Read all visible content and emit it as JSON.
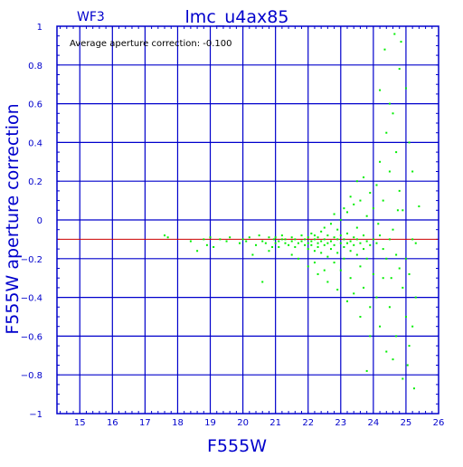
{
  "chart_data": {
    "type": "scatter",
    "title": "lmc_u4ax85",
    "corner_label": "WF3",
    "annotation": "Average aperture correction: -0.100",
    "xlabel": "F555W",
    "ylabel": "F555W aperture correction",
    "xlim": [
      14.3,
      26
    ],
    "ylim": [
      -1,
      1
    ],
    "x_ticks": [
      15,
      16,
      17,
      18,
      19,
      20,
      21,
      22,
      23,
      24,
      25,
      26
    ],
    "y_ticks": [
      -1,
      -0.8,
      -0.6,
      -0.4,
      -0.2,
      0,
      0.2,
      0.4,
      0.6,
      0.8,
      1
    ],
    "y_tick_labels": [
      "−1",
      "−0.8",
      "−0.6",
      "−0.4",
      "−0.2",
      "0",
      "0.2",
      "0.4",
      "0.6",
      "0.8",
      "1"
    ],
    "grid": true,
    "reference_line_y": -0.1,
    "colors": {
      "frame": "#0000cc",
      "grid": "#0000cc",
      "points": "#00ee00",
      "reference_line": "#cc0000",
      "text": "#0000cc",
      "annotation_text": "#000000"
    },
    "series": [
      {
        "points": [
          [
            17.6,
            -0.08
          ],
          [
            17.7,
            -0.09
          ],
          [
            18.4,
            -0.11
          ],
          [
            18.6,
            -0.16
          ],
          [
            18.8,
            -0.1
          ],
          [
            18.9,
            -0.13
          ],
          [
            19.0,
            -0.09
          ],
          [
            19.1,
            -0.14
          ],
          [
            19.3,
            -0.1
          ],
          [
            19.5,
            -0.11
          ],
          [
            19.6,
            -0.09
          ],
          [
            19.9,
            -0.12
          ],
          [
            20.0,
            -0.1
          ],
          [
            20.1,
            -0.11
          ],
          [
            20.2,
            -0.09
          ],
          [
            20.4,
            -0.13
          ],
          [
            20.5,
            -0.08
          ],
          [
            20.6,
            -0.11
          ],
          [
            20.7,
            -0.12
          ],
          [
            20.8,
            -0.09
          ],
          [
            20.9,
            -0.14
          ],
          [
            20.95,
            -0.1
          ],
          [
            20.3,
            -0.18
          ],
          [
            20.6,
            -0.32
          ],
          [
            20.8,
            -0.16
          ],
          [
            21.0,
            -0.12
          ],
          [
            21.0,
            -0.09
          ],
          [
            21.1,
            -0.11
          ],
          [
            21.1,
            -0.14
          ],
          [
            21.2,
            -0.1
          ],
          [
            21.2,
            -0.08
          ],
          [
            21.3,
            -0.12
          ],
          [
            21.3,
            -0.1
          ],
          [
            21.4,
            -0.13
          ],
          [
            21.5,
            -0.09
          ],
          [
            21.5,
            -0.11
          ],
          [
            21.6,
            -0.1
          ],
          [
            21.6,
            -0.14
          ],
          [
            21.7,
            -0.12
          ],
          [
            21.8,
            -0.08
          ],
          [
            21.8,
            -0.11
          ],
          [
            21.9,
            -0.13
          ],
          [
            21.9,
            -0.1
          ],
          [
            22.0,
            -0.12
          ],
          [
            22.0,
            -0.09
          ],
          [
            22.0,
            -0.15
          ],
          [
            22.1,
            -0.11
          ],
          [
            22.1,
            -0.07
          ],
          [
            22.1,
            -0.13
          ],
          [
            22.2,
            -0.1
          ],
          [
            22.2,
            -0.16
          ],
          [
            22.2,
            -0.08
          ],
          [
            22.3,
            -0.12
          ],
          [
            22.3,
            -0.09
          ],
          [
            22.3,
            -0.14
          ],
          [
            22.4,
            -0.11
          ],
          [
            22.4,
            -0.06
          ],
          [
            22.4,
            -0.17
          ],
          [
            22.5,
            -0.1
          ],
          [
            22.5,
            -0.13
          ],
          [
            22.5,
            -0.04
          ],
          [
            22.6,
            -0.12
          ],
          [
            22.6,
            -0.08
          ],
          [
            22.6,
            -0.19
          ],
          [
            22.7,
            -0.11
          ],
          [
            22.7,
            -0.02
          ],
          [
            22.7,
            -0.15
          ],
          [
            22.8,
            -0.09
          ],
          [
            22.8,
            -0.13
          ],
          [
            22.8,
            -0.22
          ],
          [
            22.9,
            -0.1
          ],
          [
            22.9,
            -0.05
          ],
          [
            22.9,
            -0.17
          ],
          [
            23.0,
            -0.12
          ],
          [
            23.0,
            -0.08
          ],
          [
            23.0,
            -0.26
          ],
          [
            23.0,
            0.0
          ],
          [
            23.1,
            -0.1
          ],
          [
            23.1,
            -0.14
          ],
          [
            23.1,
            -0.2
          ],
          [
            23.2,
            -0.07
          ],
          [
            23.2,
            -0.12
          ],
          [
            23.2,
            0.04
          ],
          [
            23.3,
            -0.11
          ],
          [
            23.3,
            -0.16
          ],
          [
            23.3,
            -0.3
          ],
          [
            23.4,
            -0.09
          ],
          [
            23.4,
            -0.13
          ],
          [
            23.4,
            0.08
          ],
          [
            23.5,
            -0.1
          ],
          [
            23.5,
            -0.18
          ],
          [
            23.5,
            -0.04
          ],
          [
            23.6,
            -0.12
          ],
          [
            23.6,
            -0.24
          ],
          [
            23.6,
            0.1
          ],
          [
            23.7,
            -0.08
          ],
          [
            23.7,
            -0.15
          ],
          [
            23.7,
            -0.35
          ],
          [
            23.8,
            -0.11
          ],
          [
            23.8,
            0.02
          ],
          [
            23.8,
            -0.2
          ],
          [
            23.9,
            -0.13
          ],
          [
            23.9,
            -0.45
          ],
          [
            23.9,
            0.14
          ],
          [
            24.0,
            -0.1
          ],
          [
            24.0,
            -0.28
          ],
          [
            24.0,
            0.06
          ],
          [
            22.6,
            -0.32
          ],
          [
            22.9,
            -0.36
          ],
          [
            23.2,
            -0.42
          ],
          [
            23.4,
            -0.38
          ],
          [
            23.6,
            -0.5
          ],
          [
            23.3,
            0.12
          ],
          [
            23.5,
            0.2
          ],
          [
            23.7,
            0.22
          ],
          [
            23.1,
            0.06
          ],
          [
            22.8,
            0.03
          ],
          [
            22.5,
            -0.26
          ],
          [
            22.2,
            -0.22
          ],
          [
            23.9,
            -0.6
          ],
          [
            23.8,
            -0.78
          ],
          [
            24.1,
            -0.12
          ],
          [
            24.1,
            0.18
          ],
          [
            24.1,
            -0.4
          ],
          [
            24.2,
            -0.08
          ],
          [
            24.2,
            0.3
          ],
          [
            24.2,
            -0.55
          ],
          [
            24.3,
            -0.15
          ],
          [
            24.3,
            0.1
          ],
          [
            24.3,
            -0.3
          ],
          [
            24.4,
            -0.2
          ],
          [
            24.4,
            0.45
          ],
          [
            24.4,
            -0.68
          ],
          [
            24.5,
            -0.1
          ],
          [
            24.5,
            0.25
          ],
          [
            24.5,
            -0.45
          ],
          [
            24.6,
            -0.05
          ],
          [
            24.6,
            0.55
          ],
          [
            24.6,
            -0.72
          ],
          [
            24.7,
            -0.18
          ],
          [
            24.7,
            0.35
          ],
          [
            24.7,
            -0.6
          ],
          [
            24.8,
            -0.25
          ],
          [
            24.8,
            0.15
          ],
          [
            24.8,
            0.78
          ],
          [
            24.9,
            -0.35
          ],
          [
            24.9,
            0.05
          ],
          [
            24.9,
            -0.82
          ],
          [
            25.0,
            -0.2
          ],
          [
            25.0,
            0.68
          ],
          [
            25.0,
            -0.5
          ],
          [
            25.1,
            -0.28
          ],
          [
            25.1,
            0.4
          ],
          [
            25.1,
            -0.65
          ],
          [
            25.2,
            -0.1
          ],
          [
            25.2,
            0.25
          ],
          [
            25.2,
            -0.55
          ],
          [
            25.3,
            -0.12
          ],
          [
            25.3,
            -0.4
          ],
          [
            25.4,
            0.07
          ],
          [
            24.65,
            0.96
          ],
          [
            24.85,
            0.92
          ],
          [
            24.2,
            0.67
          ],
          [
            24.5,
            0.6
          ],
          [
            24.35,
            0.88
          ],
          [
            25.25,
            -0.87
          ],
          [
            25.05,
            -0.75
          ],
          [
            24.55,
            -0.3
          ],
          [
            24.15,
            -0.02
          ],
          [
            24.75,
            0.05
          ],
          [
            22.0,
            -0.24
          ],
          [
            22.3,
            -0.28
          ],
          [
            21.7,
            -0.2
          ],
          [
            21.5,
            -0.18
          ]
        ]
      }
    ]
  }
}
